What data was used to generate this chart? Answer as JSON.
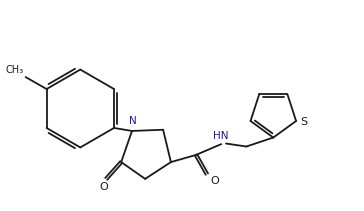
{
  "bg_color": "#ffffff",
  "line_color": "#1a1a1a",
  "text_color": "#1a1a1a",
  "label_N": "N",
  "label_NH": "HN",
  "label_O1": "O",
  "label_O2": "O",
  "label_S": "S",
  "figsize": [
    3.64,
    2.11
  ],
  "dpi": 100
}
